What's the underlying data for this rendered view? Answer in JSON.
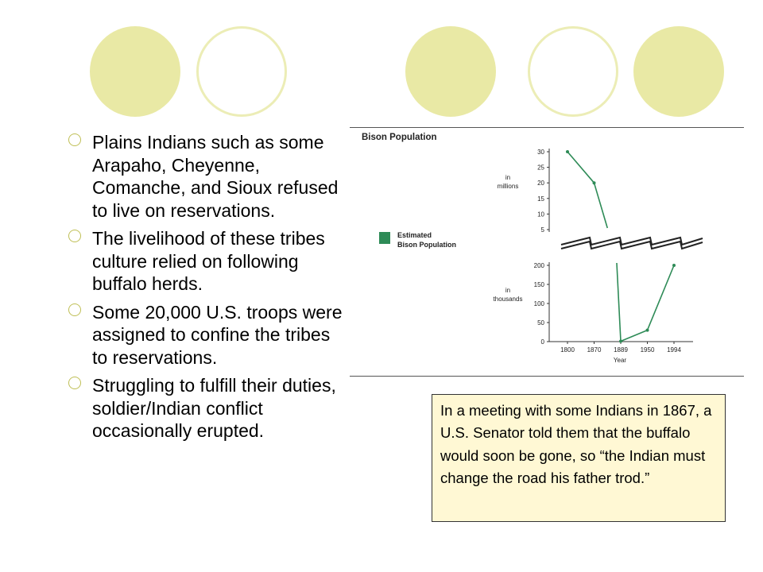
{
  "slide": {
    "bullets": [
      "Plains Indians such as some Arapaho, Cheyenne, Comanche, and Sioux refused to live on reservations.",
      "The livelihood of these tribes culture relied on following buffalo herds.",
      "Some 20,000 U.S. troops were assigned to confine the tribes to reservations.",
      "Struggling to fulfill their duties, soldier/Indian conflict occasionally erupted."
    ],
    "quote": "In a meeting with some Indians in 1867, a U.S. Senator told them that the buffalo would soon be gone, so “the Indian must change the road his father trod.”",
    "colors": {
      "accent": "#e9e9a5",
      "series": "#2e8b57",
      "quote_bg": "#fff8d4"
    }
  },
  "chart_data": {
    "type": "line",
    "title": "Bison Population",
    "xlabel": "Year",
    "legend": "Estimated Bison Population",
    "legend_lines": [
      "Estimated",
      "Bison Population"
    ],
    "series": [
      {
        "name": "Estimated Bison Population",
        "x": [
          "1800",
          "1870",
          "1889",
          "1950",
          "1994"
        ],
        "values": [
          30000000,
          20000000,
          1000,
          30000,
          200000
        ]
      }
    ],
    "upper_axis": {
      "unit_lines": [
        "in",
        "millions"
      ],
      "ticks": [
        "30",
        "25",
        "20",
        "15",
        "10",
        "5"
      ],
      "tick_values": [
        30,
        25,
        20,
        15,
        10,
        5
      ],
      "ylim": [
        5,
        30
      ]
    },
    "lower_axis": {
      "unit_lines": [
        "in",
        "thousands"
      ],
      "ticks": [
        "200",
        "150",
        "100",
        "50",
        "0"
      ],
      "tick_values": [
        200,
        150,
        100,
        50,
        0
      ],
      "ylim": [
        0,
        200
      ]
    },
    "x_ticks": [
      "1800",
      "1870",
      "1889",
      "1950",
      "1994"
    ],
    "legend_position": "left"
  }
}
